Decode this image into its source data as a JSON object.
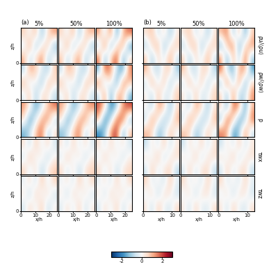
{
  "chart_data": {
    "type": "heatmap_grid",
    "xlabel": "x/h",
    "ylabel": "z/h",
    "ylim": [
      0,
      6
    ],
    "yticks": [
      0
    ],
    "rows": [
      "ρu/⟨ρu⟩",
      "ρw/⟨ρw⟩",
      "p",
      "τwx",
      "τwz"
    ],
    "colorbar": {
      "range": [
        -3,
        3
      ],
      "ticks": [
        -2,
        0,
        2
      ]
    },
    "groups": [
      {
        "label": "(a)",
        "xlim": [
          0,
          25
        ],
        "xticks": [
          0,
          10,
          20
        ],
        "columns": [
          "5%",
          "50%",
          "100%"
        ],
        "panels": [
          [
            [
              [
                1.2,
                -0.8,
                0.4,
                1.6,
                -1.1,
                0.3
              ],
              [
                -0.6,
                1.4,
                -1.3,
                0.2,
                0.9,
                -1.5
              ],
              [
                0.8,
                -0.2,
                1.1,
                -1.4,
                0.5,
                1.3
              ]
            ],
            [
              [
                1.0,
                -0.9,
                0.5,
                1.4,
                -1.2,
                0.4
              ],
              [
                -0.5,
                1.3,
                -1.1,
                0.3,
                0.8,
                -1.4
              ],
              [
                0.7,
                -0.3,
                1.2,
                -1.2,
                0.6,
                1.1
              ]
            ],
            [
              [
                1.8,
                -1.6,
                0.9,
                2.1,
                -1.9,
                0.7
              ],
              [
                -1.2,
                2.0,
                -1.8,
                0.6,
                1.5,
                -2.1
              ],
              [
                1.4,
                -0.7,
                1.9,
                -2.0,
                1.0,
                1.8
              ]
            ]
          ],
          [
            [
              [
                -0.4,
                0.9,
                -1.2,
                0.6,
                0.3,
                -0.8
              ],
              [
                1.1,
                -0.5,
                0.2,
                -1.3,
                1.0,
                0.4
              ],
              [
                -0.9,
                1.2,
                0.7,
                -0.3,
                -1.1,
                0.8
              ]
            ],
            [
              [
                -0.3,
                0.8,
                -1.0,
                0.5,
                0.4,
                -0.7
              ],
              [
                1.0,
                -0.6,
                0.3,
                -1.2,
                0.9,
                0.5
              ],
              [
                -0.8,
                1.1,
                0.6,
                -0.4,
                -1.0,
                0.7
              ]
            ],
            [
              [
                -0.9,
                1.6,
                -1.9,
                1.2,
                0.8,
                -1.5
              ],
              [
                1.8,
                -1.1,
                0.6,
                -2.0,
                1.7,
                0.9
              ],
              [
                -1.6,
                1.9,
                1.3,
                -0.8,
                -1.8,
                1.5
              ]
            ]
          ],
          [
            [
              [
                -1.5,
                -0.7,
                0.9,
                1.8,
                -1.2,
                0.5
              ],
              [
                0.6,
                -1.8,
                -0.4,
                1.2,
                1.5,
                -0.9
              ],
              [
                1.3,
                0.2,
                -1.6,
                -0.5,
                0.8,
                1.7
              ]
            ],
            [
              [
                -1.3,
                -0.6,
                0.8,
                1.6,
                -1.0,
                0.6
              ],
              [
                0.5,
                -1.6,
                -0.5,
                1.1,
                1.4,
                -0.8
              ],
              [
                1.2,
                0.3,
                -1.4,
                -0.6,
                0.7,
                1.5
              ]
            ],
            [
              [
                -2.0,
                -1.2,
                1.5,
                2.2,
                -1.8,
                1.0
              ],
              [
                1.1,
                -2.2,
                -0.9,
                1.8,
                2.0,
                -1.5
              ],
              [
                1.9,
                0.6,
                -2.1,
                -1.0,
                1.4,
                2.1
              ]
            ]
          ],
          [
            [
              [
                0.7,
                -0.4,
                0.5,
                -0.9,
                0.3,
                0.8
              ],
              [
                -0.6,
                0.9,
                -0.2,
                0.4,
                -0.8,
                0.1
              ],
              [
                0.5,
                -0.7,
                0.8,
                -0.3,
                0.6,
                -0.5
              ]
            ],
            [
              [
                0.6,
                -0.5,
                0.4,
                -0.8,
                0.4,
                0.7
              ],
              [
                -0.5,
                0.8,
                -0.3,
                0.5,
                -0.7,
                0.2
              ],
              [
                0.4,
                -0.6,
                0.7,
                -0.4,
                0.5,
                -0.4
              ]
            ],
            [
              [
                0.6,
                -0.4,
                0.5,
                -0.7,
                0.3,
                0.6
              ],
              [
                -0.4,
                0.7,
                -0.3,
                0.4,
                -0.6,
                0.2
              ],
              [
                0.5,
                -0.5,
                0.6,
                -0.3,
                0.4,
                -0.5
              ]
            ]
          ],
          [
            [
              [
                -0.5,
                0.6,
                -0.3,
                0.8,
                -0.7,
                0.2
              ],
              [
                0.4,
                -0.8,
                0.7,
                -0.2,
                0.5,
                -0.6
              ],
              [
                -0.3,
                0.5,
                -0.6,
                0.9,
                -0.4,
                0.7
              ]
            ],
            [
              [
                -0.4,
                0.5,
                -0.4,
                0.7,
                -0.6,
                0.3
              ],
              [
                0.3,
                -0.7,
                0.6,
                -0.3,
                0.4,
                -0.5
              ],
              [
                -0.2,
                0.4,
                -0.5,
                0.8,
                -0.3,
                0.6
              ]
            ],
            [
              [
                -0.5,
                0.5,
                -0.3,
                0.7,
                -0.6,
                0.3
              ],
              [
                0.4,
                -0.6,
                0.6,
                -0.2,
                0.5,
                -0.5
              ],
              [
                -0.3,
                0.4,
                -0.5,
                0.7,
                -0.4,
                0.6
              ]
            ]
          ]
        ]
      },
      {
        "label": "(b)",
        "xlim": [
          0,
          12.5
        ],
        "xticks": [
          0,
          10
        ],
        "columns": [
          "5%",
          "50%",
          "100%"
        ],
        "panels": [
          [
            [
              [
                0.9,
                -1.2,
                0.6,
                -0.4,
                1.3,
                -0.7
              ],
              [
                -1.0,
                0.5,
                1.1,
                -1.3,
                0.2,
                0.8
              ],
              [
                0.4,
                1.0,
                -0.8,
                0.7,
                -1.2,
                0.3
              ]
            ],
            [
              [
                0.8,
                -1.1,
                0.5,
                -0.3,
                1.2,
                -0.6
              ],
              [
                -0.9,
                0.6,
                1.0,
                -1.2,
                0.3,
                0.7
              ],
              [
                0.3,
                0.9,
                -0.7,
                0.6,
                -1.1,
                0.4
              ]
            ],
            [
              [
                1.5,
                -1.8,
                1.1,
                -0.9,
                1.9,
                -1.3
              ],
              [
                -1.6,
                1.0,
                1.7,
                -1.9,
                0.7,
                1.4
              ],
              [
                0.9,
                1.6,
                -1.4,
                1.2,
                -1.8,
                0.8
              ]
            ]
          ],
          [
            [
              [
                0.3,
                -0.9,
                1.0,
                -0.5,
                -0.2,
                0.8
              ],
              [
                -0.7,
                1.2,
                -0.4,
                0.9,
                -1.0,
                0.2
              ],
              [
                1.1,
                -0.3,
                -0.8,
                0.4,
                0.7,
                -1.1
              ]
            ],
            [
              [
                0.4,
                -0.8,
                0.9,
                -0.6,
                -0.1,
                0.7
              ],
              [
                -0.6,
                1.1,
                -0.5,
                0.8,
                -0.9,
                0.3
              ],
              [
                1.0,
                -0.4,
                -0.7,
                0.5,
                0.6,
                -1.0
              ]
            ],
            [
              [
                0.8,
                -1.5,
                1.7,
                -1.1,
                -0.6,
                1.4
              ],
              [
                -1.3,
                1.9,
                -1.0,
                1.5,
                -1.7,
                0.7
              ],
              [
                1.8,
                -0.8,
                -1.4,
                1.0,
                1.3,
                -1.8
              ]
            ]
          ],
          [
            [
              [
                1.0,
                0.6,
                -1.3,
                -0.5,
                0.9,
                -0.2
              ],
              [
                -0.8,
                1.4,
                0.3,
                -1.1,
                -0.4,
                1.2
              ],
              [
                0.2,
                -1.0,
                1.2,
                0.7,
                -1.3,
                0.5
              ]
            ],
            [
              [
                0.9,
                0.5,
                -1.2,
                -0.4,
                0.8,
                -0.3
              ],
              [
                -0.7,
                1.3,
                0.4,
                -1.0,
                -0.5,
                1.1
              ],
              [
                0.3,
                -0.9,
                1.1,
                0.6,
                -1.2,
                0.4
              ]
            ],
            [
              [
                1.6,
                1.1,
                -1.9,
                -1.0,
                1.5,
                -0.7
              ],
              [
                -1.4,
                2.0,
                0.8,
                -1.7,
                -0.9,
                1.8
              ],
              [
                0.7,
                -1.6,
                1.8,
                1.2,
                -1.9,
                1.0
              ]
            ]
          ],
          [
            [
              [
                -0.6,
                0.8,
                -0.4,
                0.3,
                0.7,
                -0.9
              ],
              [
                0.5,
                -0.3,
                0.9,
                -0.7,
                0.2,
                0.6
              ],
              [
                -0.8,
                0.4,
                -0.5,
                0.8,
                -0.6,
                0.3
              ]
            ],
            [
              [
                -0.5,
                0.7,
                -0.5,
                0.4,
                0.6,
                -0.8
              ],
              [
                0.4,
                -0.4,
                0.8,
                -0.6,
                0.3,
                0.5
              ],
              [
                -0.7,
                0.5,
                -0.4,
                0.7,
                -0.5,
                0.4
              ]
            ],
            [
              [
                -0.6,
                0.7,
                -0.4,
                0.3,
                0.6,
                -0.8
              ],
              [
                0.5,
                -0.3,
                0.8,
                -0.6,
                0.2,
                0.5
              ],
              [
                -0.7,
                0.4,
                -0.5,
                0.7,
                -0.5,
                0.3
              ]
            ]
          ],
          [
            [
              [
                0.4,
                -0.7,
                0.8,
                -0.2,
                -0.5,
                0.6
              ],
              [
                -0.3,
                0.6,
                -0.8,
                0.5,
                0.3,
                -0.7
              ],
              [
                0.7,
                -0.4,
                0.2,
                -0.6,
                0.8,
                -0.3
              ]
            ],
            [
              [
                0.3,
                -0.6,
                0.7,
                -0.3,
                -0.4,
                0.5
              ],
              [
                -0.2,
                0.5,
                -0.7,
                0.4,
                0.4,
                -0.6
              ],
              [
                0.6,
                -0.3,
                0.3,
                -0.5,
                0.7,
                -0.2
              ]
            ],
            [
              [
                0.4,
                -0.6,
                0.7,
                -0.2,
                -0.5,
                0.5
              ],
              [
                -0.3,
                0.5,
                -0.7,
                0.4,
                0.3,
                -0.6
              ],
              [
                0.6,
                -0.4,
                0.2,
                -0.5,
                0.7,
                -0.3
              ]
            ]
          ]
        ]
      }
    ]
  }
}
